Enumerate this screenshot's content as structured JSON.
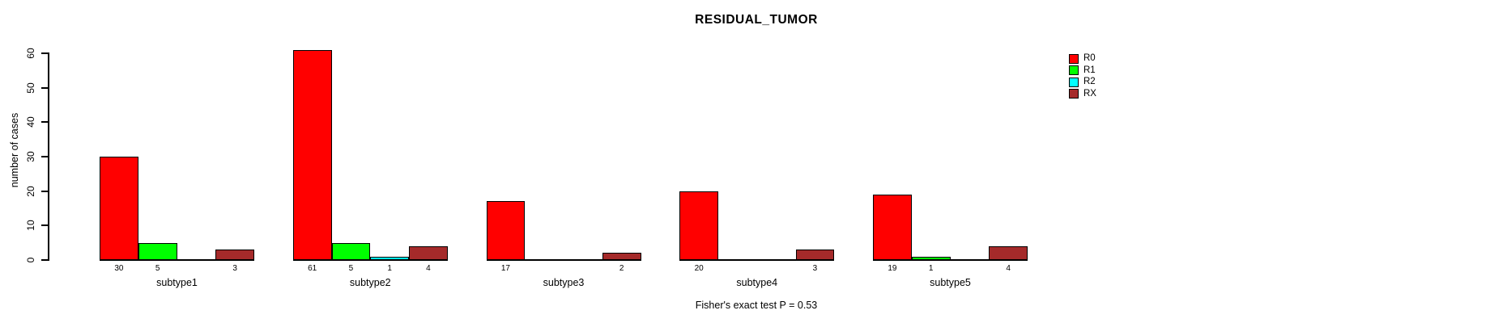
{
  "chart_data": {
    "type": "bar",
    "title": "RESIDUAL_TUMOR",
    "ylabel": "number of cases",
    "xlabel": "",
    "ylim": [
      0,
      60
    ],
    "yticks": [
      0,
      10,
      20,
      30,
      40,
      50,
      60
    ],
    "grid": false,
    "legend_position": "top-right",
    "bar_value_labels": "shown under each bar, zeros omitted",
    "footnote": "Fisher's exact test P = 0.53",
    "categories": [
      "subtype1",
      "subtype2",
      "subtype3",
      "subtype4",
      "subtype5"
    ],
    "series": [
      {
        "name": "R0",
        "color": "#FF0000",
        "values": [
          30,
          61,
          17,
          20,
          19
        ]
      },
      {
        "name": "R1",
        "color": "#00FF00",
        "values": [
          5,
          5,
          0,
          0,
          1
        ]
      },
      {
        "name": "R2",
        "color": "#00FFFF",
        "values": [
          0,
          1,
          0,
          0,
          0
        ]
      },
      {
        "name": "RX",
        "color": "#A52A2A",
        "values": [
          3,
          4,
          2,
          3,
          4
        ]
      }
    ]
  },
  "colors": {
    "background": "#FFFFFF",
    "axis": "#000000",
    "bar_border": "#000000"
  }
}
